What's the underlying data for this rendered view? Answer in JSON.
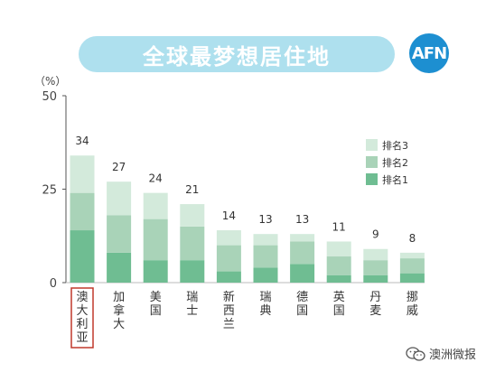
{
  "header": {
    "title": "全球最梦想居住地",
    "logo_text": "AFN"
  },
  "footer": {
    "text": "澳洲微报",
    "icon": "wechat-icon"
  },
  "chart_data": {
    "type": "bar",
    "stacked": true,
    "title": "全球最梦想居住地",
    "ylabel": "（%）",
    "ylim": [
      0,
      50
    ],
    "yticks": [
      0,
      25,
      50
    ],
    "categories": [
      "澳大利亚",
      "加拿大",
      "美国",
      "瑞士",
      "新西兰",
      "瑞典",
      "德国",
      "英国",
      "丹麦",
      "挪威"
    ],
    "highlighted_category": "澳大利亚",
    "totals": [
      34,
      27,
      24,
      21,
      14,
      13,
      13,
      11,
      9,
      8
    ],
    "series": [
      {
        "name": "排名1",
        "color": "#6fbd92",
        "values": [
          14,
          8,
          6,
          6,
          3,
          4,
          5,
          2,
          2,
          2.5
        ]
      },
      {
        "name": "排名2",
        "color": "#a9d3b8",
        "values": [
          10,
          10,
          11,
          9,
          7,
          6,
          6,
          5,
          4,
          4
        ]
      },
      {
        "name": "排名3",
        "color": "#d3eadb",
        "values": [
          10,
          9,
          7,
          6,
          4,
          3,
          2,
          4,
          3,
          1.5
        ]
      }
    ],
    "legend": [
      "排名3",
      "排名2",
      "排名1"
    ],
    "legend_position": "top-right",
    "grid": false
  }
}
